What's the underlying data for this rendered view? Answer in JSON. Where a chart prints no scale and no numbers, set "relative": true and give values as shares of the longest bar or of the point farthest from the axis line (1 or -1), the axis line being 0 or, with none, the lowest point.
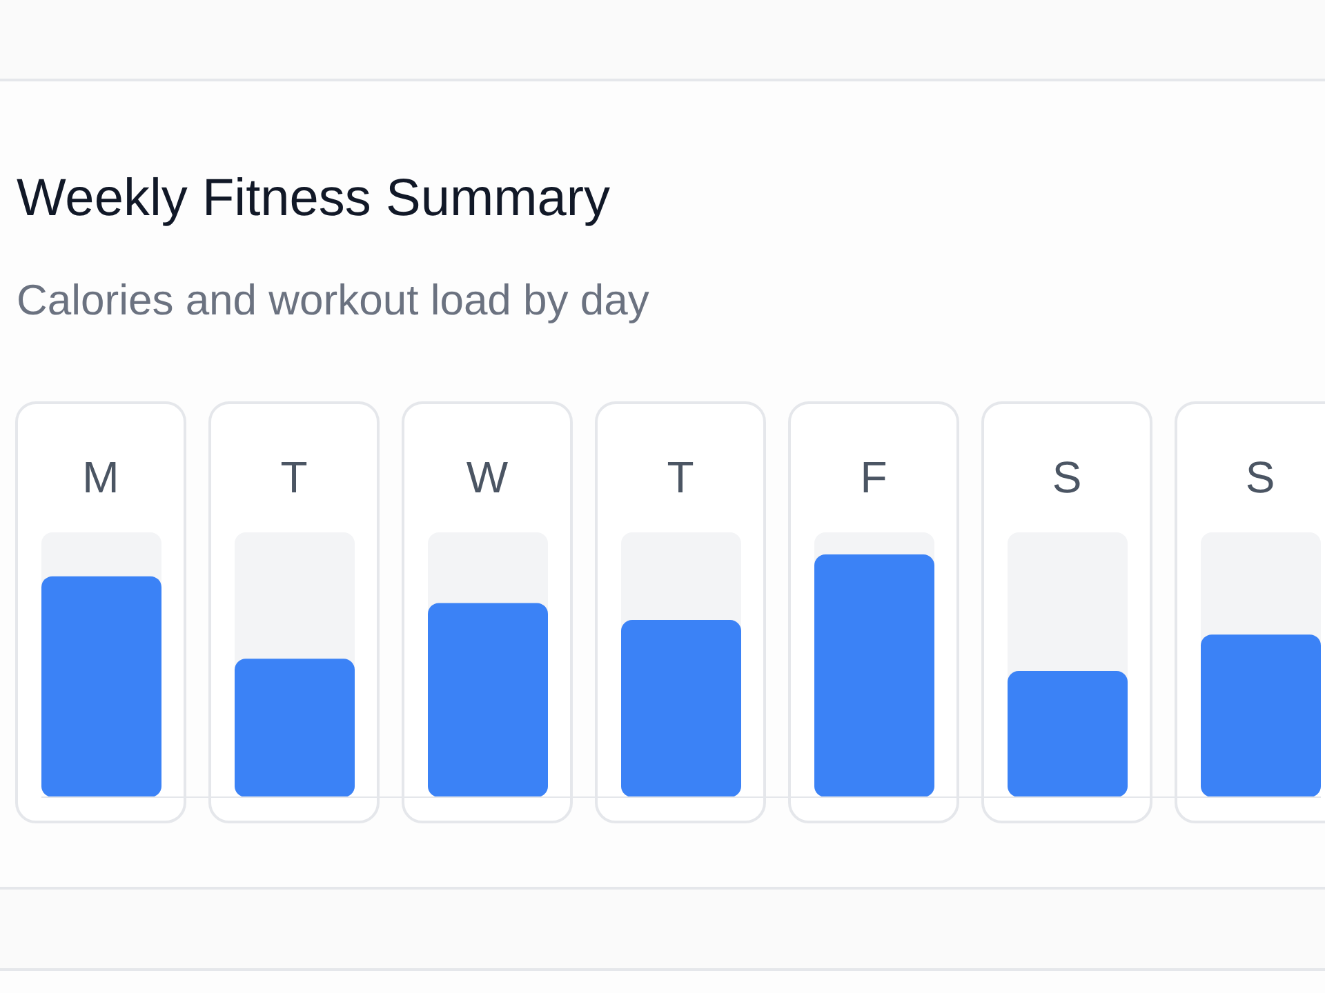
{
  "chart_data": {
    "type": "bar",
    "title": "Weekly Fitness Summary",
    "subtitle": "Calories and workout load by day",
    "categories": [
      "M",
      "T",
      "W",
      "T",
      "F",
      "S",
      "S"
    ],
    "values": [
      0.91,
      0.57,
      0.8,
      0.73,
      1,
      0.52,
      0.67
    ],
    "color": "#3b82f6",
    "relative": true
  }
}
